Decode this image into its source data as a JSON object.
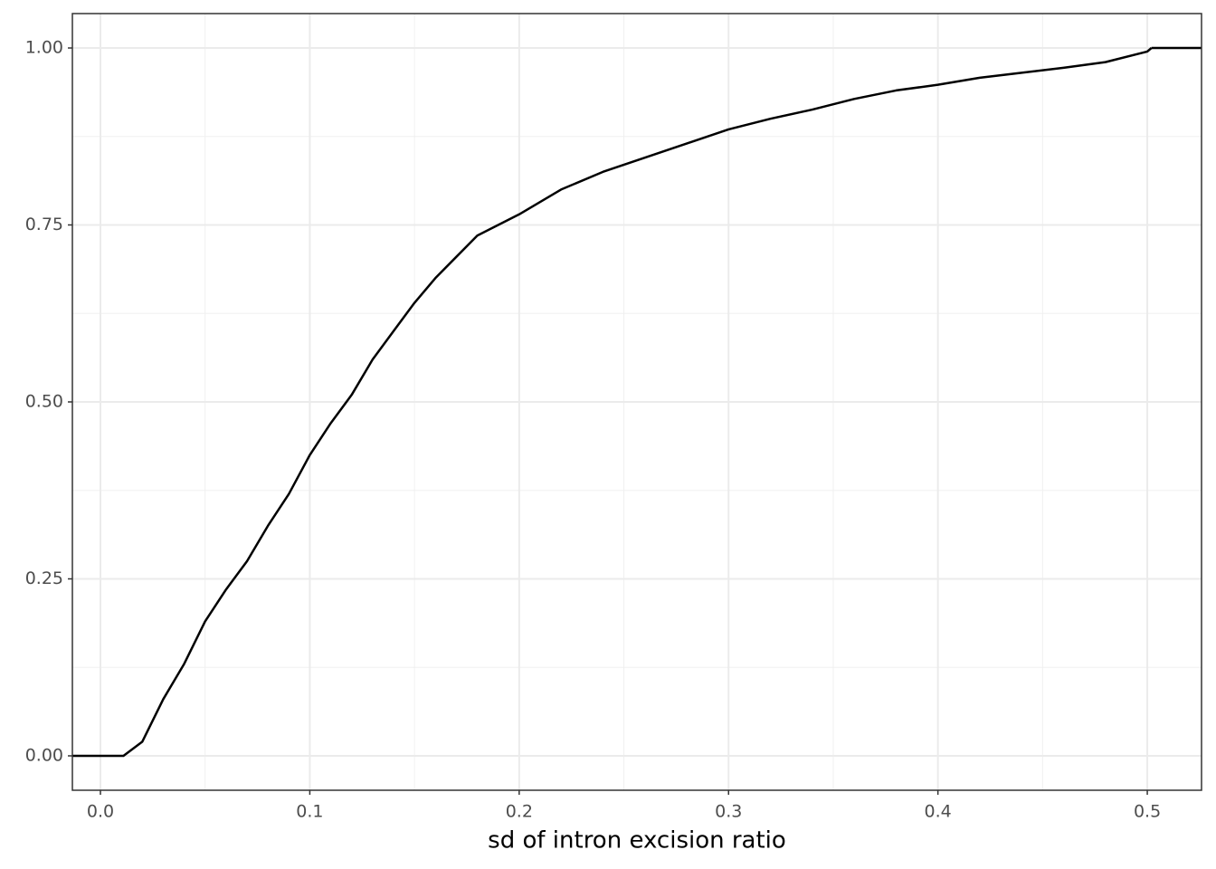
{
  "chart_data": {
    "type": "ecdf",
    "x_label": "sd of intron excision ratio",
    "x": [
      0.0,
      0.011,
      0.02,
      0.03,
      0.04,
      0.05,
      0.06,
      0.07,
      0.08,
      0.09,
      0.1,
      0.11,
      0.12,
      0.13,
      0.14,
      0.15,
      0.16,
      0.17,
      0.18,
      0.19,
      0.2,
      0.22,
      0.24,
      0.26,
      0.28,
      0.3,
      0.32,
      0.34,
      0.36,
      0.38,
      0.4,
      0.42,
      0.44,
      0.46,
      0.48,
      0.5,
      0.502
    ],
    "values": [
      0,
      0,
      0.02,
      0.08,
      0.13,
      0.19,
      0.235,
      0.275,
      0.325,
      0.37,
      0.425,
      0.47,
      0.51,
      0.56,
      0.6,
      0.64,
      0.675,
      0.705,
      0.735,
      0.75,
      0.765,
      0.8,
      0.825,
      0.845,
      0.865,
      0.885,
      0.9,
      0.913,
      0.928,
      0.94,
      0.948,
      0.958,
      0.965,
      0.972,
      0.98,
      0.995,
      1.0
    ],
    "color": "#000000",
    "xlim": [
      -0.0134,
      0.5259
    ],
    "ylim": [
      -0.0486,
      1.0486
    ],
    "xticks": [
      {
        "value": 0,
        "label": "0.0"
      },
      0.1,
      0.2,
      0.3,
      0.4,
      0.5
    ],
    "yticks": [
      {
        "value": 0,
        "label": "0.00"
      },
      {
        "value": 0.25,
        "label": "0.25"
      },
      {
        "value": 0.5,
        "label": "0.50"
      },
      {
        "value": 0.75,
        "label": "0.75"
      },
      {
        "value": 1,
        "label": "1.00"
      }
    ],
    "grid": true
  }
}
